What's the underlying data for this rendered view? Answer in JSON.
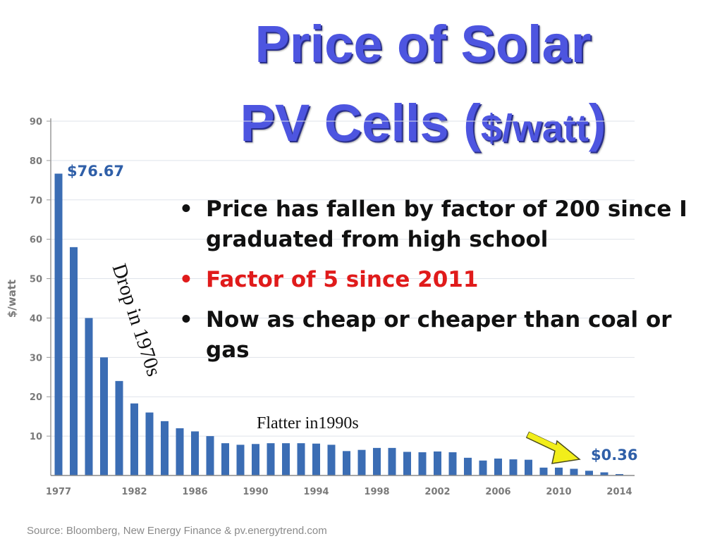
{
  "title": {
    "line1": "Price of Solar",
    "line2_prefix": "PV Cells (",
    "line2_unit": "$/watt",
    "line2_suffix": ")"
  },
  "bullets": [
    {
      "text": "Price has fallen by factor of 200 since I graduated from high school",
      "color": "#111111"
    },
    {
      "text": "Factor of 5 since 2011",
      "color": "#e01b1b"
    },
    {
      "text": "Now as cheap or cheaper than coal or gas",
      "color": "#111111"
    }
  ],
  "annotations": {
    "drop": "Drop in 1970s",
    "flatter": "Flatter in1990s"
  },
  "source": "Source: Bloomberg, New Energy Finance & pv.energytrend.com",
  "chart_data": {
    "type": "bar",
    "title": "",
    "xlabel": "",
    "ylabel": "$/watt",
    "ylim": [
      0,
      90
    ],
    "yticks": [
      10,
      20,
      30,
      40,
      50,
      60,
      70,
      80,
      90
    ],
    "x_tick_labels": [
      "1977",
      "1982",
      "1986",
      "1990",
      "1994",
      "1998",
      "2002",
      "2006",
      "2010",
      "2014"
    ],
    "categories": [
      "1977",
      "1978",
      "1979",
      "1980",
      "1981",
      "1982",
      "1983",
      "1984",
      "1985",
      "1986",
      "1987",
      "1988",
      "1989",
      "1990",
      "1991",
      "1992",
      "1993",
      "1994",
      "1995",
      "1996",
      "1997",
      "1998",
      "1999",
      "2000",
      "2001",
      "2002",
      "2003",
      "2004",
      "2005",
      "2006",
      "2007",
      "2008",
      "2009",
      "2010",
      "2011",
      "2012",
      "2013",
      "2014"
    ],
    "values": [
      76.67,
      58,
      40,
      30,
      24,
      18.3,
      16,
      13.8,
      12,
      11.2,
      10,
      8.2,
      7.8,
      8,
      8.2,
      8.2,
      8.2,
      8.1,
      7.8,
      6.2,
      6.5,
      7,
      7,
      6,
      5.9,
      6.1,
      5.9,
      4.5,
      3.8,
      4.3,
      4.1,
      4,
      2,
      2,
      1.7,
      1.2,
      0.8,
      0.36
    ],
    "data_labels": [
      {
        "category": "1977",
        "text": "$76.67"
      },
      {
        "category": "2014",
        "text": "$0.36"
      }
    ],
    "bar_color": "#3b6db4",
    "label_color": "#2f5fa8",
    "arrow_color": "#f2ee1a"
  }
}
